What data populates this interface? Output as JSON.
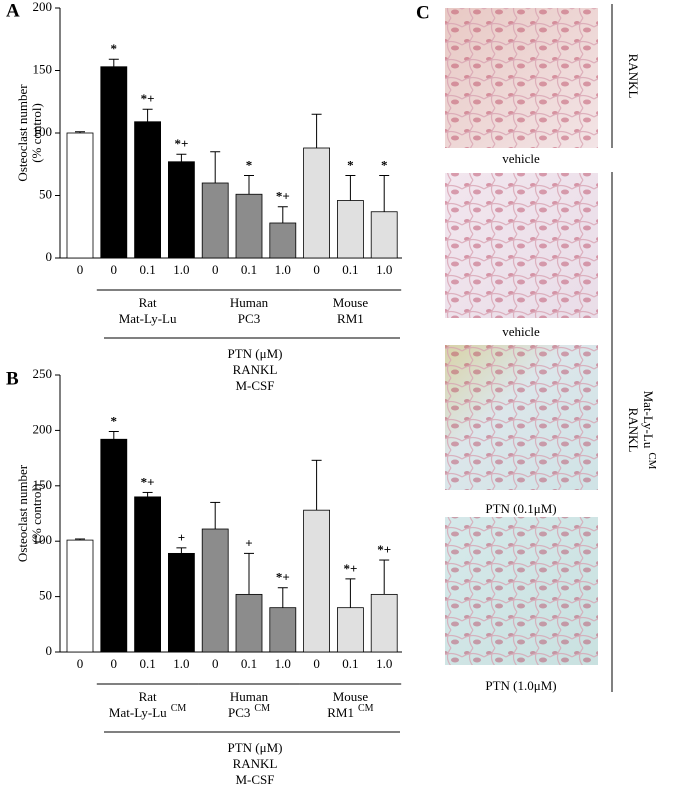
{
  "chart_data": [
    {
      "type": "bar",
      "panel": "A",
      "y_label": [
        "Osteoclast number",
        "(% control)"
      ],
      "categories": [
        "0",
        "0",
        "0.1",
        "1.0",
        "0",
        "0.1",
        "1.0",
        "0",
        "0.1",
        "1.0"
      ],
      "values": [
        100,
        153,
        109,
        77,
        60,
        51,
        28,
        88,
        46,
        37
      ],
      "errors": [
        1,
        6,
        10,
        6,
        25,
        15,
        13,
        27,
        20,
        29
      ],
      "colors": [
        "#ffffff",
        "#000000",
        "#000000",
        "#000000",
        "#8c8c8c",
        "#8c8c8c",
        "#8c8c8c",
        "#e0e0e0",
        "#e0e0e0",
        "#e0e0e0"
      ],
      "markers": [
        null,
        "*",
        "*+",
        "*+",
        null,
        "*",
        "*+",
        null,
        "*",
        "*"
      ],
      "ylim": [
        0,
        200
      ],
      "yticks": [
        0,
        50,
        100,
        150,
        200
      ],
      "groups": [
        {
          "lines": [
            "Rat",
            "Mat-Ly-Lu"
          ]
        },
        {
          "lines": [
            "Human",
            "PC3"
          ]
        },
        {
          "lines": [
            "Mouse",
            "RM1"
          ]
        }
      ],
      "footer": [
        "PTN (μM)",
        "RANKL",
        "M-CSF"
      ]
    },
    {
      "type": "bar",
      "panel": "B",
      "y_label": [
        "Osteoclast number",
        "(% control)"
      ],
      "categories": [
        "0",
        "0",
        "0.1",
        "1.0",
        "0",
        "0.1",
        "1.0",
        "0",
        "0.1",
        "1.0"
      ],
      "values": [
        101,
        192,
        140,
        89,
        111,
        52,
        40,
        128,
        40,
        52
      ],
      "errors": [
        1,
        7,
        4,
        5,
        24,
        37,
        18,
        45,
        26,
        31
      ],
      "colors": [
        "#ffffff",
        "#000000",
        "#000000",
        "#000000",
        "#8c8c8c",
        "#8c8c8c",
        "#8c8c8c",
        "#e0e0e0",
        "#e0e0e0",
        "#e0e0e0"
      ],
      "markers": [
        null,
        "*",
        "*+",
        "+",
        null,
        "+",
        "*+",
        null,
        "*+",
        "*+"
      ],
      "ylim": [
        0,
        250
      ],
      "yticks": [
        0,
        50,
        100,
        150,
        200,
        250
      ],
      "groups": [
        {
          "lines": [
            "Rat",
            "Mat-Ly-Lu"
          ],
          "superscript": "CM"
        },
        {
          "lines": [
            "Human",
            "PC3"
          ],
          "superscript": "CM"
        },
        {
          "lines": [
            "Mouse",
            "RM1"
          ],
          "superscript": "CM"
        }
      ],
      "footer": [
        "PTN (μM)",
        "RANKL",
        "M-CSF"
      ]
    }
  ],
  "panel_c": {
    "label": "C",
    "images": [
      {
        "caption": "vehicle"
      },
      {
        "caption": "vehicle"
      },
      {
        "caption": "PTN (0.1μM)"
      },
      {
        "caption": "PTN (1.0μM)"
      }
    ],
    "brackets": [
      {
        "lines": [
          "RANKL"
        ]
      },
      {
        "lines": [
          "RANKL",
          "Mat-Ly-Lu"
        ],
        "superscript": "CM"
      }
    ]
  }
}
